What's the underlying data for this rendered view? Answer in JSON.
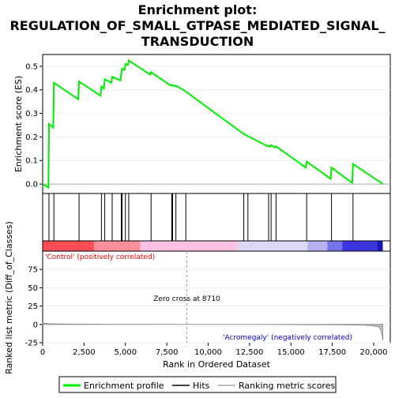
{
  "chart_data": {
    "type": "line",
    "title_lines": [
      "Enrichment plot:",
      "REGULATION_OF_SMALL_GTPASE_MEDIATED_SIGNAL_",
      "TRANSDUCTION"
    ],
    "xlabel": "Rank in Ordered Dataset",
    "xlim": [
      0,
      21000
    ],
    "x_ticks": [
      0,
      2500,
      5000,
      7500,
      10000,
      12500,
      15000,
      17500,
      20000
    ],
    "x_tick_labels": [
      "0",
      "2,500",
      "5,000",
      "7,500",
      "10,000",
      "12,500",
      "15,000",
      "17,500",
      "20,000"
    ],
    "es_panel": {
      "ylabel": "Enrichment score (ES)",
      "ylim": [
        -0.04,
        0.55
      ],
      "y_ticks": [
        0.0,
        0.1,
        0.2,
        0.3,
        0.4,
        0.5
      ],
      "y_tick_labels": [
        "0.0",
        "0.1",
        "0.2",
        "0.3",
        "0.4",
        "0.5"
      ],
      "line_color": "#00ee00",
      "enrichment_profile": [
        [
          0,
          0.0
        ],
        [
          350,
          -0.015
        ],
        [
          380,
          0.255
        ],
        [
          640,
          0.24
        ],
        [
          680,
          0.43
        ],
        [
          2150,
          0.36
        ],
        [
          2200,
          0.435
        ],
        [
          3500,
          0.375
        ],
        [
          3550,
          0.415
        ],
        [
          3700,
          0.405
        ],
        [
          3750,
          0.445
        ],
        [
          4150,
          0.43
        ],
        [
          4200,
          0.455
        ],
        [
          4700,
          0.44
        ],
        [
          4750,
          0.47
        ],
        [
          4800,
          0.49
        ],
        [
          4950,
          0.485
        ],
        [
          5000,
          0.51
        ],
        [
          5150,
          0.505
        ],
        [
          5200,
          0.525
        ],
        [
          6500,
          0.465
        ],
        [
          6550,
          0.475
        ],
        [
          7700,
          0.42
        ],
        [
          7800,
          0.418
        ],
        [
          7850,
          0.42
        ],
        [
          8000,
          0.415
        ],
        [
          8050,
          0.418
        ],
        [
          8600,
          0.395
        ],
        [
          12100,
          0.215
        ],
        [
          12350,
          0.205
        ],
        [
          13600,
          0.16
        ],
        [
          13650,
          0.163
        ],
        [
          13750,
          0.158
        ],
        [
          13800,
          0.165
        ],
        [
          14050,
          0.155
        ],
        [
          14100,
          0.16
        ],
        [
          15900,
          0.07
        ],
        [
          15950,
          0.095
        ],
        [
          17400,
          0.022
        ],
        [
          17450,
          0.07
        ],
        [
          18700,
          0.005
        ],
        [
          18750,
          0.085
        ],
        [
          20550,
          0.0
        ]
      ],
      "hits": [
        380,
        680,
        2200,
        3550,
        3750,
        4200,
        4750,
        4800,
        5000,
        5200,
        6550,
        7800,
        7850,
        8050,
        8650,
        12150,
        12400,
        13650,
        13800,
        14100,
        15950,
        17450,
        18750
      ]
    },
    "metric_panel": {
      "ylabel": "Ranked list metric (Diff_of_Classes)",
      "ylim": [
        -25,
        100
      ],
      "y_ticks": [
        -25,
        0,
        25,
        50,
        75
      ],
      "y_tick_labels": [
        "-25",
        "0",
        "25",
        "50",
        "75"
      ],
      "metric_curve": [
        [
          0,
          2.5
        ],
        [
          100,
          1.6
        ],
        [
          400,
          0.9
        ],
        [
          800,
          0.6
        ],
        [
          2000,
          0.4
        ],
        [
          4000,
          0.25
        ],
        [
          6000,
          0.12
        ],
        [
          8000,
          0.04
        ],
        [
          8710,
          0.0
        ],
        [
          10000,
          -0.05
        ],
        [
          12000,
          -0.12
        ],
        [
          14000,
          -0.25
        ],
        [
          16000,
          -0.4
        ],
        [
          18000,
          -0.7
        ],
        [
          19500,
          -1.2
        ],
        [
          20000,
          -2.0
        ],
        [
          20300,
          -3.5
        ],
        [
          20450,
          -8.0
        ],
        [
          20550,
          -22.0
        ]
      ],
      "positive_label": "'Control' (positively correlated)",
      "positive_color": "#ff0000",
      "negative_label": "'Acromegaly' (negatively correlated)",
      "negative_color": "#0000dd",
      "zero_cross_label": "Zero cross at 8710",
      "zero_cross_rank": 8710
    },
    "legend": {
      "placement": "bottom",
      "items": [
        {
          "label": "Enrichment profile",
          "color": "#00ee00",
          "kind": "line"
        },
        {
          "label": "Hits",
          "color": "#000000",
          "kind": "line"
        },
        {
          "label": "Ranking metric scores",
          "color": "#aaaaaa",
          "kind": "line"
        }
      ]
    },
    "gradient_colors": [
      {
        "from": 0,
        "to": 3100,
        "color": "#ff4d55"
      },
      {
        "from": 3100,
        "to": 5900,
        "color": "#ff8f9a"
      },
      {
        "from": 5900,
        "to": 11800,
        "color": "#ffc2e4"
      },
      {
        "from": 11800,
        "to": 16000,
        "color": "#dcd8f6"
      },
      {
        "from": 16000,
        "to": 17200,
        "color": "#b4b2ef"
      },
      {
        "from": 17200,
        "to": 18100,
        "color": "#7574e6"
      },
      {
        "from": 18100,
        "to": 20200,
        "color": "#3b33dd"
      },
      {
        "from": 20200,
        "to": 20550,
        "color": "#1515bb"
      }
    ]
  }
}
